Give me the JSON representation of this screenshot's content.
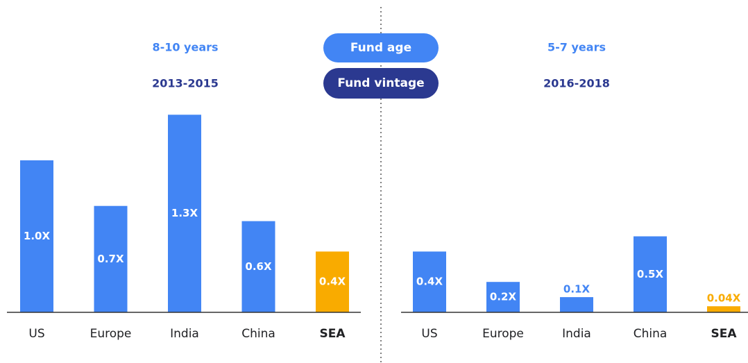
{
  "fund_age_label": "Fund age",
  "fund_vintage_label": "Fund vintage",
  "highlight_color": "#f9ab00",
  "chart_data": [
    {
      "type": "bar",
      "age": "8-10 years",
      "vintage": "2013-2015",
      "categories": [
        "US",
        "Europe",
        "India",
        "China",
        "SEA"
      ],
      "values": [
        1.0,
        0.7,
        1.3,
        0.6,
        0.4
      ],
      "value_labels": [
        "1.0X",
        "0.7X",
        "1.3X",
        "0.6X",
        "0.4X"
      ],
      "colors": [
        "#4285f4",
        "#4285f4",
        "#4285f4",
        "#4285f4",
        "#f9ab00"
      ]
    },
    {
      "type": "bar",
      "age": "5-7 years",
      "vintage": "2016-2018",
      "categories": [
        "US",
        "Europe",
        "India",
        "China",
        "SEA"
      ],
      "values": [
        0.4,
        0.2,
        0.1,
        0.5,
        0.04
      ],
      "value_labels": [
        "0.4X",
        "0.2X",
        "0.1X",
        "0.5X",
        "0.04X"
      ],
      "colors": [
        "#4285f4",
        "#4285f4",
        "#4285f4",
        "#4285f4",
        "#f9ab00"
      ]
    }
  ]
}
